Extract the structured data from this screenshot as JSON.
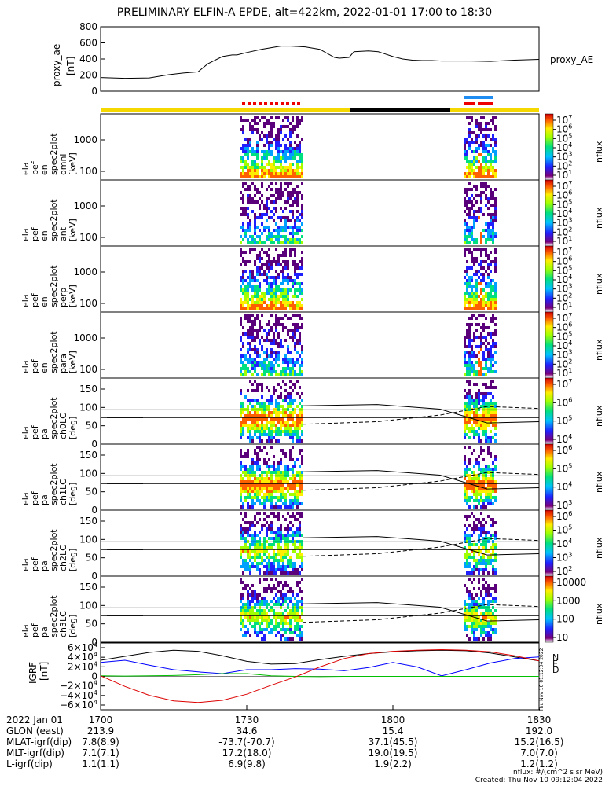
{
  "title": "PRELIMINARY ELFIN-A EPDE, alt=422km, 2022-01-01 17:00 to 18:30",
  "chart_data": [
    {
      "type": "line",
      "panel": "proxy_ae",
      "ylabel": [
        "proxy_ae",
        "[nT]"
      ],
      "series_label": "proxy_AE",
      "ylim": [
        0,
        800
      ],
      "yticks": [
        "800",
        "600",
        "400",
        "200",
        "0"
      ],
      "x_minutes": [
        0,
        5,
        10,
        14,
        17,
        20,
        22,
        25,
        27,
        28,
        30,
        33,
        36,
        37,
        39,
        42,
        45,
        48,
        49,
        51,
        52,
        55,
        57,
        58,
        60,
        62,
        64,
        66,
        68,
        70,
        73,
        76,
        80,
        85,
        90
      ],
      "values": [
        170,
        160,
        165,
        205,
        225,
        240,
        340,
        430,
        450,
        450,
        480,
        520,
        550,
        560,
        560,
        550,
        520,
        420,
        410,
        420,
        490,
        500,
        490,
        470,
        430,
        400,
        385,
        380,
        380,
        375,
        375,
        375,
        370,
        385,
        395
      ]
    },
    {
      "type": "heatmap",
      "panel": "ela_pef_en_spec2plot_omni",
      "ylabel": [
        "ela",
        "pef",
        "en",
        "spec2plot",
        "omni",
        "[keV]"
      ],
      "yticks": [
        "1000",
        "100"
      ],
      "colorbar_label": "nflux",
      "colorbar_ticks": [
        "10^7",
        "10^6",
        "10^5",
        "10^4",
        "10^3",
        "10^2",
        "10^1"
      ]
    },
    {
      "type": "heatmap",
      "panel": "ela_pef_en_spec2plot_anti",
      "ylabel": [
        "ela",
        "pef",
        "en",
        "spec2plot",
        "anti",
        "[keV]"
      ],
      "yticks": [
        "1000",
        "100"
      ],
      "colorbar_label": "nflux",
      "colorbar_ticks": [
        "10^7",
        "10^6",
        "10^5",
        "10^4",
        "10^3",
        "10^2",
        "10^1"
      ]
    },
    {
      "type": "heatmap",
      "panel": "ela_pef_en_spec2plot_perp",
      "ylabel": [
        "ela",
        "pef",
        "en",
        "spec2plot",
        "perp",
        "[keV]"
      ],
      "yticks": [
        "1000",
        "100"
      ],
      "colorbar_label": "nflux",
      "colorbar_ticks": [
        "10^7",
        "10^6",
        "10^5",
        "10^4",
        "10^3",
        "10^2",
        "10^1"
      ]
    },
    {
      "type": "heatmap",
      "panel": "ela_pef_en_spec2plot_para",
      "ylabel": [
        "ela",
        "pef",
        "en",
        "spec2plot",
        "para",
        "[keV]"
      ],
      "yticks": [
        "1000",
        "100"
      ],
      "colorbar_label": "nflux",
      "colorbar_ticks": [
        "10^7",
        "10^6",
        "10^5",
        "10^4",
        "10^3",
        "10^2",
        "10^1"
      ]
    },
    {
      "type": "heatmap",
      "panel": "ela_pef_pa_spec2plot_ch0LC",
      "ylabel": [
        "ela",
        "pef",
        "pa",
        "spec2plot",
        "ch0LC",
        "[deg]"
      ],
      "yticks": [
        "150",
        "100",
        "50",
        "0"
      ],
      "colorbar_label": "nflux",
      "colorbar_ticks": [
        "10^7",
        "10^6",
        "10^5",
        "10^4"
      ]
    },
    {
      "type": "heatmap",
      "panel": "ela_pef_pa_spec2plot_ch1LC",
      "ylabel": [
        "ela",
        "pef",
        "pa",
        "spec2plot",
        "ch1LC",
        "[deg]"
      ],
      "yticks": [
        "150",
        "100",
        "50",
        "0"
      ],
      "colorbar_label": "nflux",
      "colorbar_ticks": [
        "10^6",
        "10^5",
        "10^4",
        "10^3"
      ]
    },
    {
      "type": "heatmap",
      "panel": "ela_pef_pa_spec2plot_ch2LC",
      "ylabel": [
        "ela",
        "pef",
        "pa",
        "spec2plot",
        "ch2LC",
        "[deg]"
      ],
      "yticks": [
        "150",
        "100",
        "50",
        "0"
      ],
      "colorbar_label": "nflux",
      "colorbar_ticks": [
        "10^6",
        "10^5",
        "10^4",
        "10^3",
        "10^2"
      ]
    },
    {
      "type": "heatmap",
      "panel": "ela_pef_pa_spec2plot_ch3LC",
      "ylabel": [
        "ela",
        "pef",
        "pa",
        "spec2plot",
        "ch3LC",
        "[deg]"
      ],
      "yticks": [
        "150",
        "100",
        "50",
        "0"
      ],
      "colorbar_label": "nflux",
      "colorbar_ticks": [
        "10000",
        "1000",
        "100",
        "10"
      ]
    },
    {
      "type": "line",
      "panel": "IGRF",
      "ylabel": [
        "IGRF",
        "[nT]"
      ],
      "ylim": [
        -60000,
        60000
      ],
      "yticks": [
        "6×10^4",
        "4×10^4",
        "2×10^4",
        "0",
        "−2×10^4",
        "−4×10^4",
        "−6×10^4"
      ],
      "legend": [
        "N",
        "E",
        "D"
      ],
      "x_minutes": [
        0,
        5,
        10,
        15,
        20,
        25,
        30,
        35,
        40,
        45,
        50,
        55,
        60,
        65,
        70,
        75,
        80,
        85,
        90
      ],
      "series": [
        {
          "name": "black",
          "color": "#000000",
          "values": [
            29000,
            36000,
            43000,
            47000,
            45000,
            37000,
            27000,
            22000,
            23000,
            30000,
            36000,
            41000,
            44000,
            46000,
            47000,
            46000,
            42000,
            35000,
            28000
          ]
        },
        {
          "name": "blue",
          "color": "#0000ff",
          "values": [
            25000,
            29000,
            20000,
            12000,
            8000,
            5000,
            12000,
            12000,
            14000,
            13000,
            10000,
            16000,
            25000,
            17000,
            1000,
            12000,
            24000,
            32000,
            35000
          ]
        },
        {
          "name": "green",
          "color": "#00c000",
          "values": [
            1000,
            500,
            1000,
            1500,
            3000,
            5000,
            5000,
            1000,
            0,
            -500,
            0,
            0,
            0,
            0,
            0,
            0,
            0,
            0,
            0
          ]
        },
        {
          "name": "red",
          "color": "#dd0000",
          "values": [
            1000,
            -18000,
            -34000,
            -44000,
            -47000,
            -43000,
            -32000,
            -16000,
            -1000,
            17000,
            32000,
            41000,
            45000,
            47000,
            48000,
            47000,
            44000,
            37000,
            28000
          ]
        }
      ]
    }
  ],
  "x_ticks": [
    "1700",
    "1730",
    "1800",
    "1830"
  ],
  "footer_rows": [
    {
      "label": "2022 Jan 01",
      "values": [
        "1700",
        "1730",
        "1800",
        "1830"
      ]
    },
    {
      "label": "GLON (east)",
      "values": [
        "213.9",
        "34.6",
        "15.4",
        "192.0"
      ]
    },
    {
      "label": "MLAT-igrf(dip)",
      "values": [
        "7.8(8.9)",
        "-73.7(-70.7)",
        "37.1(45.5)",
        "15.2(16.5)"
      ]
    },
    {
      "label": "MLT-igrf(dip)",
      "values": [
        "7.1(7.1)",
        "17.2(18.0)",
        "19.0(19.5)",
        "7.0(7.0)"
      ]
    },
    {
      "label": "L-igrf(dip)",
      "values": [
        "1.1(1.1)",
        "6.9(9.8)",
        "1.9(2.2)",
        "1.2(1.2)"
      ]
    }
  ],
  "units_note": "nflux: #/(cm^2 s sr MeV)",
  "created": "Created: Thu Nov 10 09:12:04 2022",
  "vertical_stamp": "Thu Nov 10 01:12:04 2022",
  "colors": {
    "sunlit_bar": "#f5d800",
    "eclipse_bar": "#000000",
    "science_red": "#ee0000",
    "blue_bar": "#1e8cf0"
  }
}
